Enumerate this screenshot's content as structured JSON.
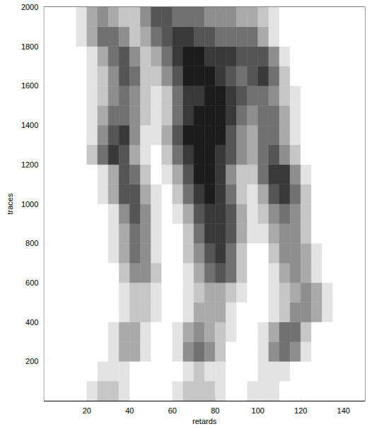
{
  "chart_data": {
    "type": "heatmap",
    "xlabel": "retards",
    "ylabel": "traces",
    "xlim": [
      0,
      150
    ],
    "ylim": [
      0,
      2000
    ],
    "xticks": [
      20,
      40,
      60,
      80,
      100,
      120,
      140
    ],
    "yticks": [
      200,
      400,
      600,
      800,
      1000,
      1200,
      1400,
      1600,
      1800,
      2000
    ],
    "color": "#000000",
    "zlim": [
      0,
      9
    ],
    "x": [
      2.5,
      7.5,
      12.5,
      17.5,
      22.5,
      27.5,
      32.5,
      37.5,
      42.5,
      47.5,
      52.5,
      57.5,
      62.5,
      67.5,
      72.5,
      77.5,
      82.5,
      87.5,
      92.5,
      97.5,
      102.5,
      107.5,
      112.5,
      117.5,
      122.5,
      127.5,
      132.5,
      137.5,
      142.5,
      147.5
    ],
    "y": [
      50,
      150,
      250,
      350,
      450,
      550,
      650,
      750,
      850,
      950,
      1050,
      1150,
      1250,
      1350,
      1450,
      1550,
      1650,
      1750,
      1850,
      1950
    ],
    "z": [
      [
        0,
        0,
        0,
        0,
        1,
        2,
        2,
        1,
        0,
        0,
        0,
        0,
        1,
        2,
        2,
        2,
        1,
        0,
        0,
        1,
        1,
        1,
        0,
        0,
        0,
        0,
        0,
        0,
        0,
        0
      ],
      [
        0,
        0,
        0,
        0,
        0,
        1,
        1,
        1,
        0,
        0,
        0,
        0,
        0,
        1,
        2,
        1,
        1,
        0,
        0,
        0,
        1,
        1,
        1,
        0,
        0,
        0,
        0,
        0,
        0,
        0
      ],
      [
        0,
        0,
        0,
        0,
        0,
        0,
        1,
        3,
        3,
        1,
        0,
        0,
        1,
        4,
        5,
        4,
        2,
        0,
        0,
        0,
        1,
        4,
        5,
        4,
        1,
        0,
        0,
        0,
        0,
        0
      ],
      [
        0,
        0,
        0,
        0,
        0,
        0,
        1,
        3,
        3,
        1,
        0,
        0,
        1,
        3,
        4,
        3,
        2,
        1,
        0,
        0,
        1,
        3,
        5,
        5,
        2,
        0,
        0,
        0,
        0,
        0
      ],
      [
        0,
        0,
        0,
        0,
        0,
        0,
        0,
        1,
        2,
        2,
        1,
        0,
        0,
        1,
        3,
        3,
        3,
        1,
        0,
        0,
        0,
        1,
        2,
        4,
        4,
        3,
        1,
        0,
        0,
        0
      ],
      [
        0,
        0,
        0,
        0,
        0,
        0,
        0,
        1,
        2,
        2,
        1,
        0,
        0,
        1,
        2,
        3,
        3,
        2,
        1,
        0,
        0,
        1,
        2,
        3,
        4,
        3,
        1,
        0,
        0,
        0
      ],
      [
        0,
        0,
        0,
        0,
        0,
        0,
        0,
        2,
        4,
        4,
        2,
        0,
        0,
        1,
        3,
        5,
        6,
        5,
        2,
        0,
        0,
        1,
        3,
        4,
        3,
        1,
        0,
        0,
        0,
        0
      ],
      [
        0,
        0,
        0,
        0,
        0,
        0,
        1,
        3,
        5,
        4,
        1,
        0,
        0,
        2,
        4,
        6,
        7,
        5,
        2,
        0,
        0,
        2,
        4,
        4,
        3,
        1,
        0,
        0,
        0,
        0
      ],
      [
        0,
        0,
        0,
        0,
        0,
        0,
        1,
        3,
        5,
        4,
        1,
        0,
        0,
        2,
        5,
        7,
        7,
        6,
        3,
        1,
        1,
        3,
        4,
        4,
        2,
        0,
        0,
        0,
        0,
        0
      ],
      [
        0,
        0,
        0,
        0,
        0,
        0,
        1,
        4,
        6,
        4,
        1,
        0,
        1,
        3,
        6,
        7,
        7,
        6,
        3,
        1,
        2,
        4,
        5,
        4,
        2,
        0,
        0,
        0,
        0,
        0
      ],
      [
        0,
        0,
        0,
        0,
        0,
        1,
        3,
        6,
        6,
        3,
        1,
        0,
        2,
        5,
        7,
        8,
        7,
        5,
        2,
        1,
        3,
        6,
        7,
        5,
        2,
        0,
        0,
        0,
        0,
        0
      ],
      [
        0,
        0,
        0,
        0,
        0,
        1,
        3,
        6,
        5,
        2,
        0,
        1,
        3,
        6,
        8,
        8,
        7,
        4,
        2,
        2,
        5,
        7,
        7,
        4,
        1,
        0,
        0,
        0,
        0,
        0
      ],
      [
        0,
        0,
        0,
        0,
        2,
        5,
        7,
        6,
        3,
        1,
        0,
        2,
        5,
        7,
        8,
        8,
        7,
        6,
        4,
        3,
        5,
        6,
        4,
        2,
        0,
        0,
        0,
        0,
        0,
        0
      ],
      [
        0,
        0,
        0,
        0,
        1,
        4,
        6,
        7,
        4,
        1,
        1,
        3,
        6,
        8,
        8,
        8,
        8,
        6,
        4,
        3,
        5,
        5,
        3,
        1,
        0,
        0,
        0,
        0,
        0,
        0
      ],
      [
        0,
        0,
        0,
        0,
        1,
        3,
        5,
        5,
        4,
        2,
        1,
        2,
        5,
        7,
        8,
        8,
        8,
        7,
        5,
        4,
        5,
        5,
        3,
        1,
        0,
        0,
        0,
        0,
        0,
        0
      ],
      [
        0,
        0,
        0,
        0,
        1,
        2,
        4,
        5,
        4,
        2,
        1,
        2,
        5,
        7,
        7,
        8,
        8,
        7,
        6,
        5,
        5,
        4,
        2,
        1,
        0,
        0,
        0,
        0,
        0,
        0
      ],
      [
        0,
        0,
        0,
        0,
        1,
        2,
        4,
        6,
        5,
        2,
        2,
        4,
        6,
        8,
        8,
        8,
        7,
        6,
        5,
        6,
        7,
        5,
        2,
        0,
        0,
        0,
        0,
        0,
        0,
        0
      ],
      [
        0,
        0,
        0,
        0,
        1,
        3,
        5,
        6,
        4,
        2,
        3,
        5,
        7,
        8,
        8,
        7,
        7,
        7,
        6,
        6,
        6,
        4,
        1,
        0,
        0,
        0,
        0,
        0,
        0,
        0
      ],
      [
        0,
        0,
        0,
        1,
        3,
        5,
        5,
        4,
        2,
        3,
        5,
        6,
        7,
        7,
        6,
        6,
        5,
        5,
        5,
        5,
        3,
        1,
        0,
        0,
        0,
        0,
        0,
        0,
        0,
        0
      ],
      [
        0,
        0,
        0,
        1,
        3,
        4,
        3,
        2,
        2,
        4,
        6,
        6,
        5,
        5,
        5,
        4,
        4,
        4,
        3,
        3,
        2,
        1,
        0,
        0,
        0,
        0,
        0,
        0,
        0,
        0
      ]
    ]
  }
}
